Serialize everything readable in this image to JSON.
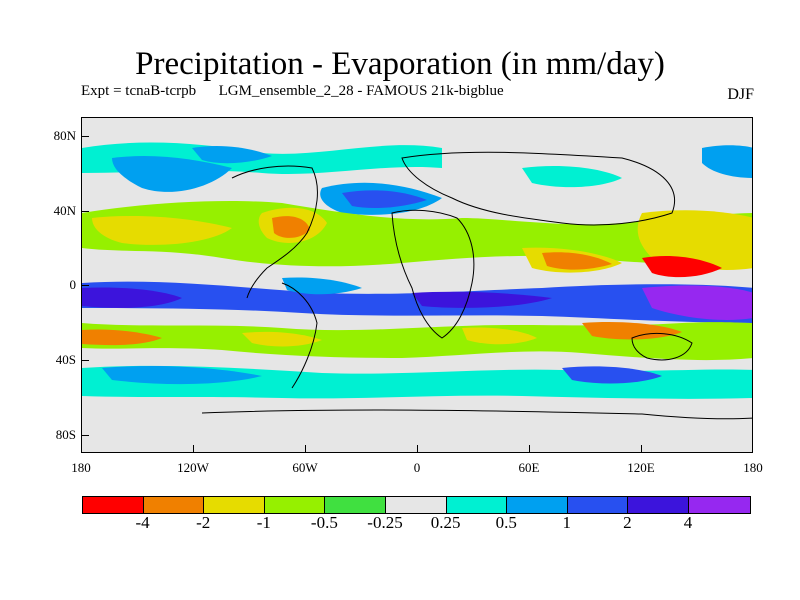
{
  "title": "Precipitation - Evaporation (in mm/day)",
  "subtitle": "Expt = tcnaB-tcrpb      LGM_ensemble_2_28 - FAMOUS 21k-bigblue",
  "season": "DJF",
  "y_axis_labels": [
    "80N",
    "40N",
    "0",
    "40S",
    "80S"
  ],
  "x_axis_labels": [
    "180",
    "120W",
    "60W",
    "0",
    "60E",
    "120E",
    "180"
  ],
  "colorbar": {
    "colors": [
      "#ff0000",
      "#f08000",
      "#e6dc00",
      "#96f000",
      "#40e040",
      "#e6e6e6",
      "#00f0d2",
      "#00a0f0",
      "#2850f0",
      "#3c14dc",
      "#9628f0"
    ],
    "labels": [
      "-4",
      "-2",
      "-1",
      "-0.5",
      "-0.25",
      "0.25",
      "0.5",
      "1",
      "2",
      "4"
    ]
  }
}
